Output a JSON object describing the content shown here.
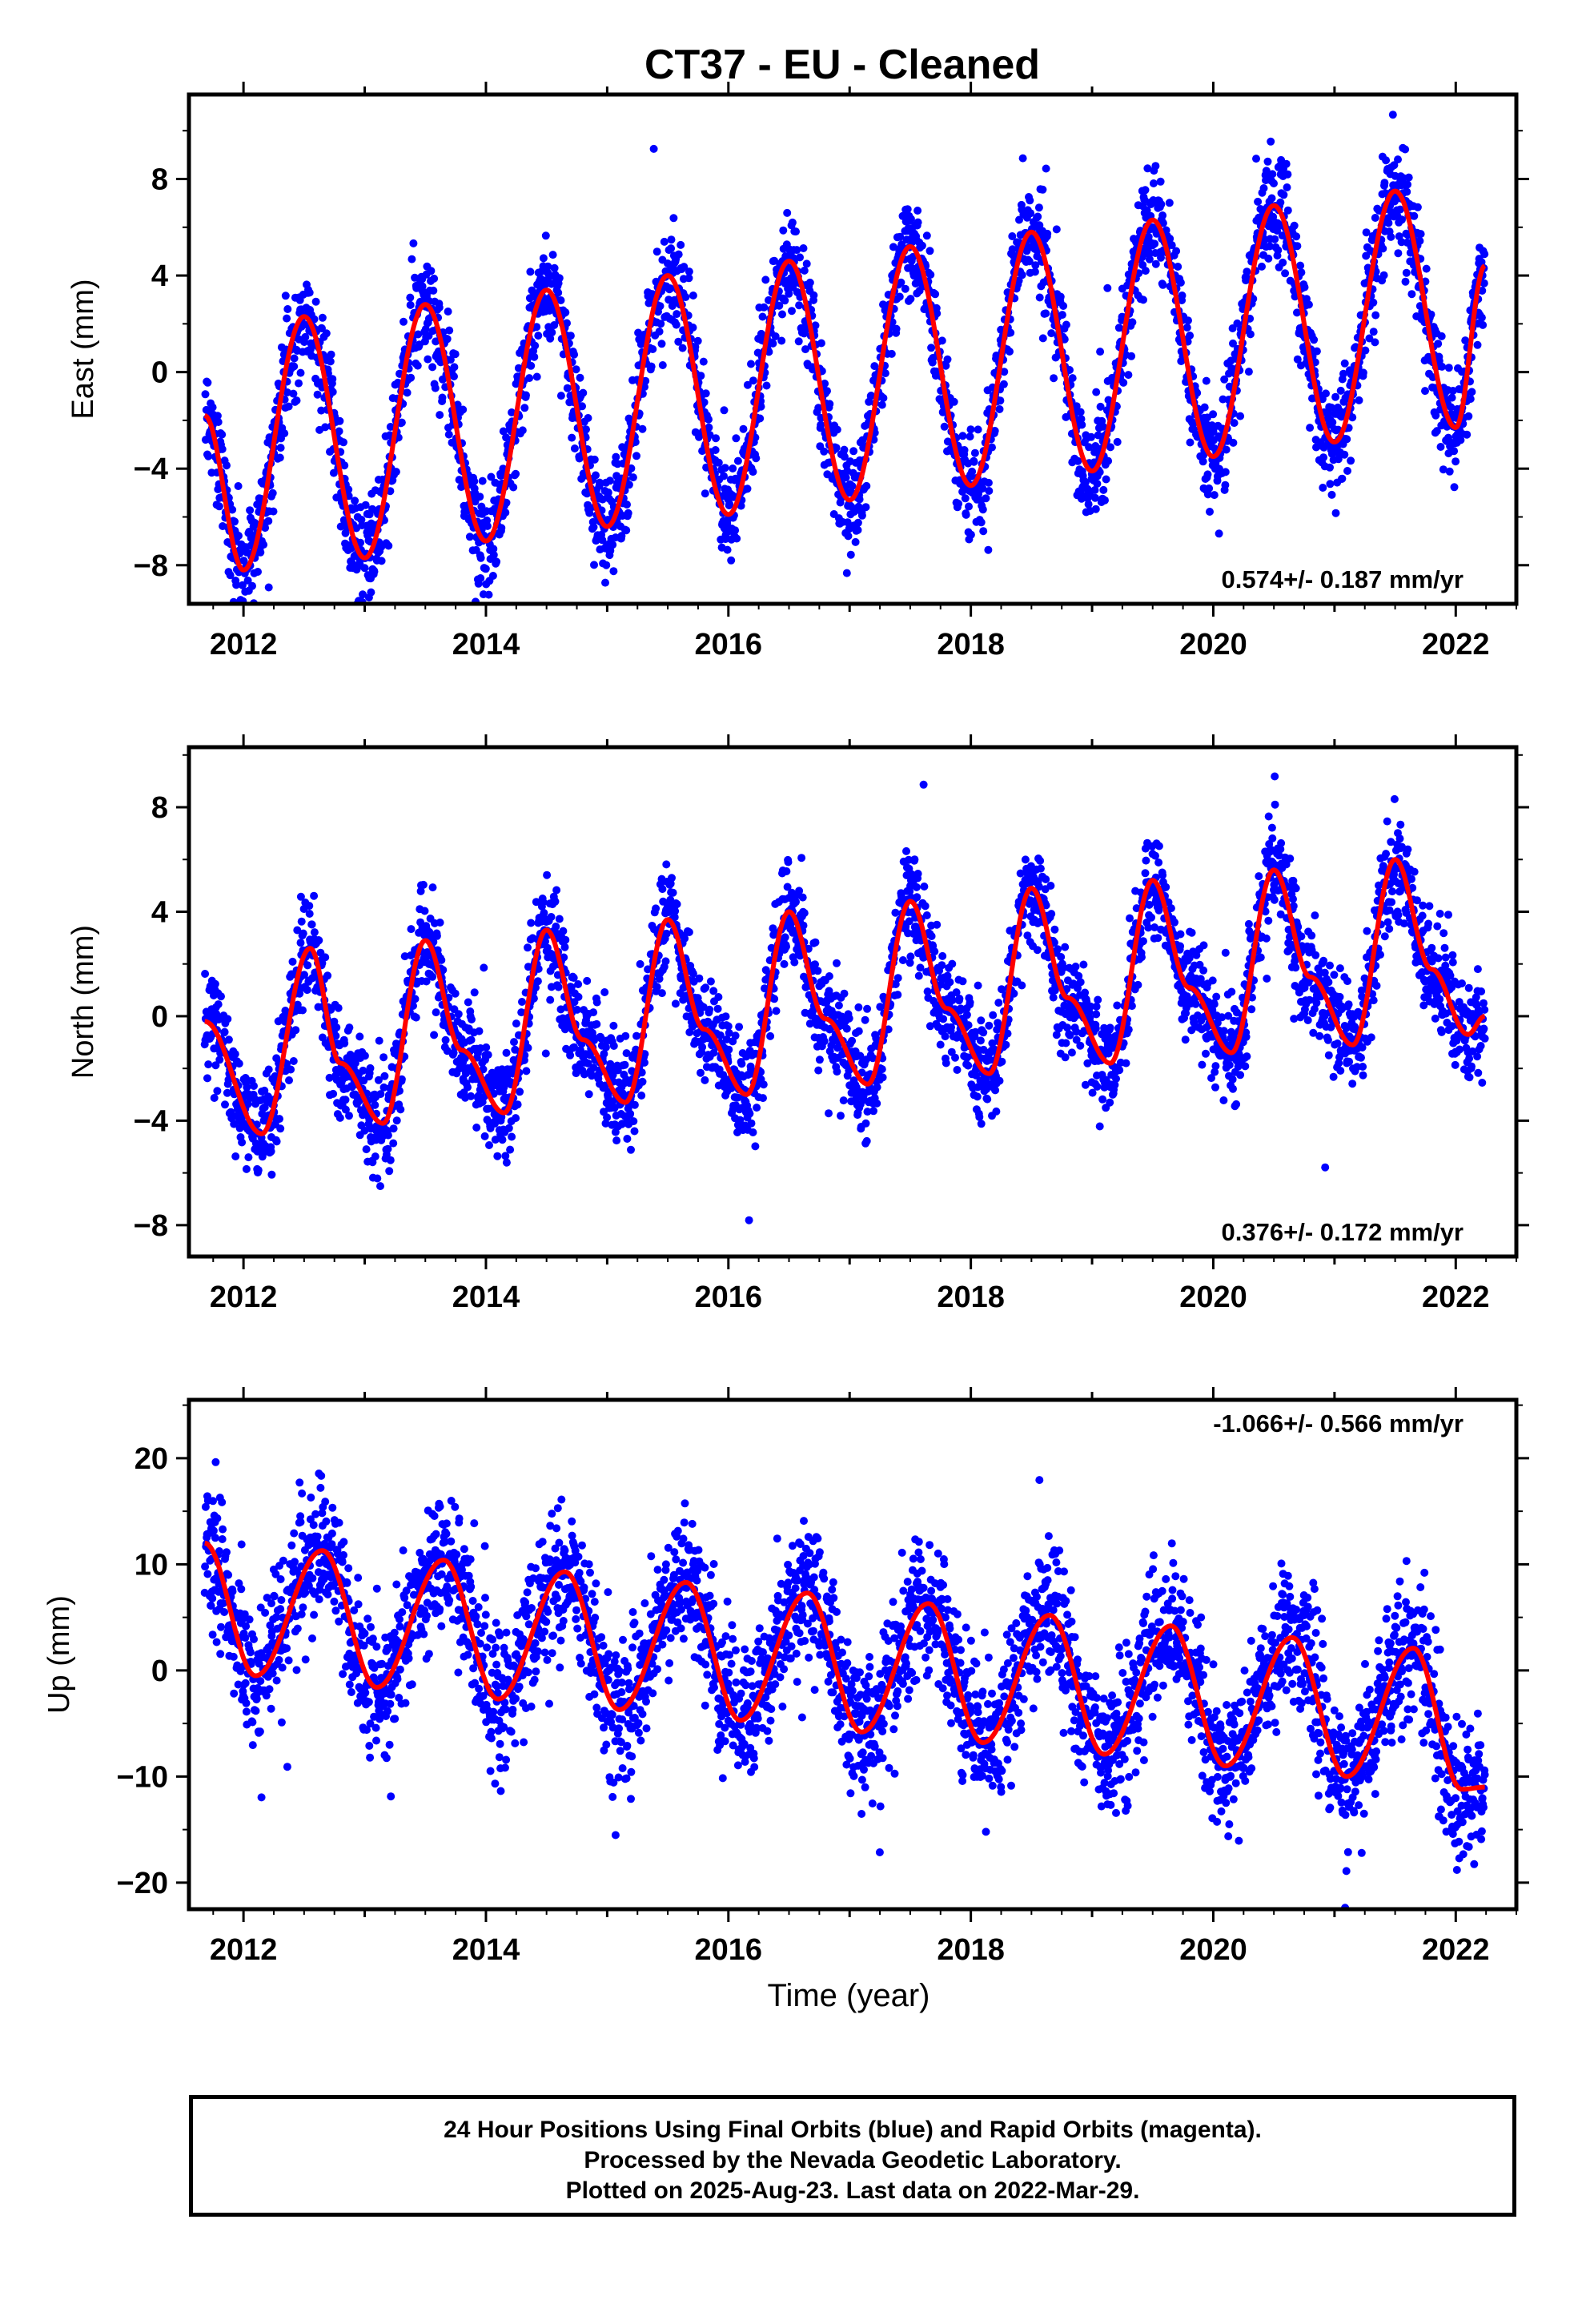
{
  "figure": {
    "title": "CT37  - EU - Cleaned",
    "xlabel": "Time (year)"
  },
  "footer": {
    "line1": "24 Hour Positions Using Final Orbits (blue) and Rapid Orbits (magenta).",
    "line2": "Processed by the Nevada Geodetic Laboratory.",
    "line3": "Plotted on 2025-Aug-23. Last data on 2022-Mar-29."
  },
  "colors": {
    "final_orbits": "#0000ff",
    "rapid_orbits": "#ff00ff",
    "model_fit": "#ff0000",
    "frame": "#000000"
  },
  "chart_data": [
    {
      "type": "scatter",
      "id": "east",
      "ylabel": "East (mm)",
      "xlim": [
        2011.55,
        2022.5
      ],
      "ylim": [
        -9.6,
        11.5
      ],
      "xticks": [
        2012,
        2014,
        2016,
        2018,
        2020,
        2022
      ],
      "yticks": [
        -8,
        -4,
        0,
        4,
        8
      ],
      "rate_label": "0.574+/- 0.187 mm/yr",
      "rate_position": "bottom-right",
      "data_start": 2011.68,
      "data_end": 2022.24,
      "trend_mm_per_yr": 0.574,
      "model_fit": {
        "x": [
          2011.68,
          2012.0,
          2012.5,
          2013.0,
          2013.5,
          2014.0,
          2014.5,
          2015.0,
          2015.5,
          2016.0,
          2016.5,
          2017.0,
          2017.5,
          2018.0,
          2018.5,
          2019.0,
          2019.5,
          2020.0,
          2020.5,
          2021.0,
          2021.5,
          2022.0,
          2022.24
        ],
        "y": [
          -1.8,
          -8.2,
          2.3,
          -7.7,
          2.8,
          -7.0,
          3.4,
          -6.4,
          4.0,
          -5.9,
          4.6,
          -5.3,
          5.2,
          -4.7,
          5.8,
          -4.1,
          6.3,
          -3.5,
          6.9,
          -2.9,
          7.5,
          -2.3,
          4.4
        ]
      },
      "series": [
        {
          "name": "Final Orbits",
          "color": "#0000ff",
          "offset": 0.0,
          "amplitude": 5.2,
          "trend": 0.574,
          "scatter_sd": 1.1,
          "daily_observations": true
        }
      ]
    },
    {
      "type": "scatter",
      "id": "north",
      "ylabel": "North (mm)",
      "xlim": [
        2011.55,
        2022.5
      ],
      "ylim": [
        -9.2,
        10.3
      ],
      "xticks": [
        2012,
        2014,
        2016,
        2018,
        2020,
        2022
      ],
      "yticks": [
        -8,
        -4,
        0,
        4,
        8
      ],
      "rate_label": "0.376+/- 0.172 mm/yr",
      "rate_position": "bottom-right",
      "data_start": 2011.68,
      "data_end": 2022.24,
      "trend_mm_per_yr": 0.376,
      "model_fit": {
        "x": [
          2011.68,
          2012.15,
          2012.55,
          2012.8,
          2013.15,
          2013.5,
          2013.8,
          2014.15,
          2014.5,
          2014.8,
          2015.15,
          2015.5,
          2015.8,
          2016.15,
          2016.5,
          2016.8,
          2017.15,
          2017.5,
          2017.8,
          2018.15,
          2018.5,
          2018.8,
          2019.15,
          2019.5,
          2019.8,
          2020.15,
          2020.5,
          2020.8,
          2021.15,
          2021.5,
          2021.8,
          2022.1,
          2022.24
        ],
        "y": [
          -0.2,
          -4.5,
          2.6,
          -1.8,
          -4.1,
          2.9,
          -1.3,
          -3.7,
          3.3,
          -0.9,
          -3.3,
          3.7,
          -0.5,
          -3.0,
          4.0,
          -0.1,
          -2.6,
          4.4,
          0.3,
          -2.2,
          4.9,
          0.7,
          -1.8,
          5.2,
          1.1,
          -1.4,
          5.6,
          1.5,
          -1.1,
          6.0,
          1.8,
          -0.7,
          0.0
        ]
      },
      "series": [
        {
          "name": "Final Orbits",
          "color": "#0000ff",
          "offset": 0.0,
          "amplitude": 3.6,
          "trend": 0.376,
          "scatter_sd": 1.0,
          "daily_observations": true
        }
      ]
    },
    {
      "type": "scatter",
      "id": "up",
      "ylabel": "Up (mm)",
      "xlim": [
        2011.55,
        2022.5
      ],
      "ylim": [
        -22.5,
        25.5
      ],
      "xticks": [
        2012,
        2014,
        2016,
        2018,
        2020,
        2022
      ],
      "yticks": [
        -20,
        -10,
        0,
        10,
        20
      ],
      "rate_label": "-1.066+/- 0.566 mm/yr",
      "rate_position": "top-right",
      "data_start": 2011.68,
      "data_end": 2022.24,
      "trend_mm_per_yr": -1.066,
      "model_fit": {
        "x": [
          2011.68,
          2012.1,
          2012.65,
          2013.1,
          2013.65,
          2014.1,
          2014.65,
          2015.1,
          2015.65,
          2016.1,
          2016.65,
          2017.1,
          2017.65,
          2018.1,
          2018.65,
          2019.1,
          2019.65,
          2020.1,
          2020.65,
          2021.1,
          2021.65,
          2022.05,
          2022.24
        ],
        "y": [
          12.0,
          -0.5,
          11.3,
          -1.6,
          10.4,
          -2.7,
          9.3,
          -3.7,
          8.3,
          -4.7,
          7.3,
          -5.8,
          6.3,
          -6.8,
          5.2,
          -7.9,
          4.2,
          -9.0,
          3.1,
          -10.0,
          2.1,
          -11.2,
          -11.0
        ]
      },
      "series": [
        {
          "name": "Final Orbits",
          "color": "#0000ff",
          "offset": 0.0,
          "amplitude": 7.5,
          "trend": -1.066,
          "scatter_sd": 3.3,
          "daily_observations": true
        }
      ]
    }
  ]
}
